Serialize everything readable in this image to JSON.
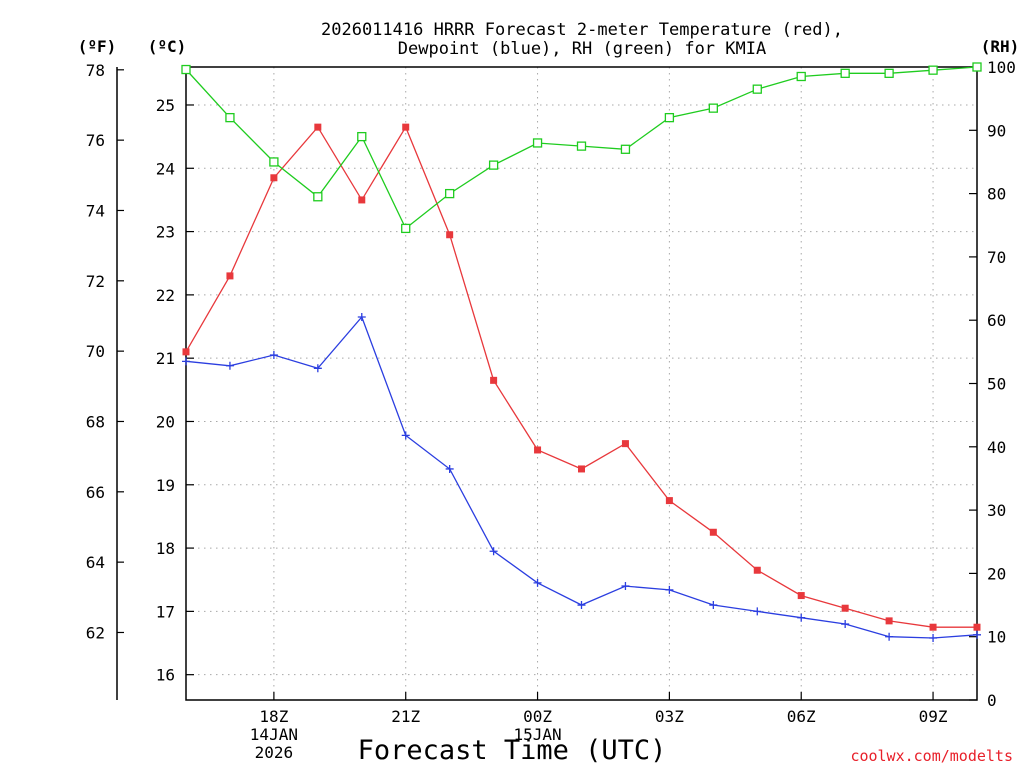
{
  "chart_data": {
    "type": "line",
    "title_lines": [
      "2026011416 HRRR Forecast 2-meter Temperature (red),",
      "Dewpoint (blue), RH (green) for KMIA"
    ],
    "xlabel": "Forecast Time (UTC)",
    "credit": "coolwx.com/modelts",
    "x_hours": [
      16,
      17,
      18,
      19,
      20,
      21,
      22,
      23,
      24,
      25,
      26,
      27,
      28,
      29,
      30,
      31,
      32,
      33,
      34
    ],
    "x_ticks": [
      {
        "hour": 18,
        "lines": [
          "18Z",
          "14JAN",
          "2026"
        ]
      },
      {
        "hour": 21,
        "lines": [
          "21Z"
        ]
      },
      {
        "hour": 24,
        "lines": [
          "00Z",
          "15JAN"
        ]
      },
      {
        "hour": 27,
        "lines": [
          "03Z"
        ]
      },
      {
        "hour": 30,
        "lines": [
          "06Z"
        ]
      },
      {
        "hour": 33,
        "lines": [
          "09Z"
        ]
      }
    ],
    "axes": {
      "fahrenheit": {
        "label": "(ºF)",
        "ticks": [
          "62",
          "64",
          "66",
          "68",
          "70",
          "72",
          "74",
          "76",
          "78"
        ]
      },
      "celsius": {
        "label": "(ºC)",
        "range": [
          15.6,
          25.6
        ],
        "ticks": [
          "16",
          "17",
          "18",
          "19",
          "20",
          "21",
          "22",
          "23",
          "24",
          "25"
        ]
      },
      "rh": {
        "label": "(RH)",
        "range": [
          0,
          100
        ],
        "ticks": [
          "0",
          "10",
          "20",
          "30",
          "40",
          "50",
          "60",
          "70",
          "80",
          "90",
          "100"
        ]
      }
    },
    "series": [
      {
        "name": "Temperature",
        "unit": "C",
        "color": "#e8383c",
        "marker": "filled-square",
        "values": [
          21.1,
          22.3,
          23.85,
          24.65,
          23.5,
          24.65,
          22.95,
          20.65,
          19.55,
          19.25,
          19.65,
          18.75,
          18.25,
          17.65,
          17.25,
          17.05,
          16.85,
          16.75,
          16.75
        ]
      },
      {
        "name": "Dewpoint",
        "unit": "C",
        "color": "#2b3ee0",
        "marker": "plus",
        "values": [
          20.95,
          20.88,
          21.05,
          20.84,
          21.65,
          19.78,
          19.25,
          17.95,
          17.45,
          17.1,
          17.4,
          17.34,
          17.1,
          17.0,
          16.9,
          16.8,
          16.6,
          16.58,
          16.63
        ]
      },
      {
        "name": "RH",
        "unit": "%",
        "color": "#1fcc1f",
        "marker": "open-square",
        "values": [
          99.6,
          92,
          85,
          79.5,
          89,
          74.5,
          80,
          84.5,
          88,
          87.5,
          87,
          92,
          93.5,
          96.5,
          98.5,
          99,
          99,
          99.5,
          100
        ]
      }
    ]
  }
}
